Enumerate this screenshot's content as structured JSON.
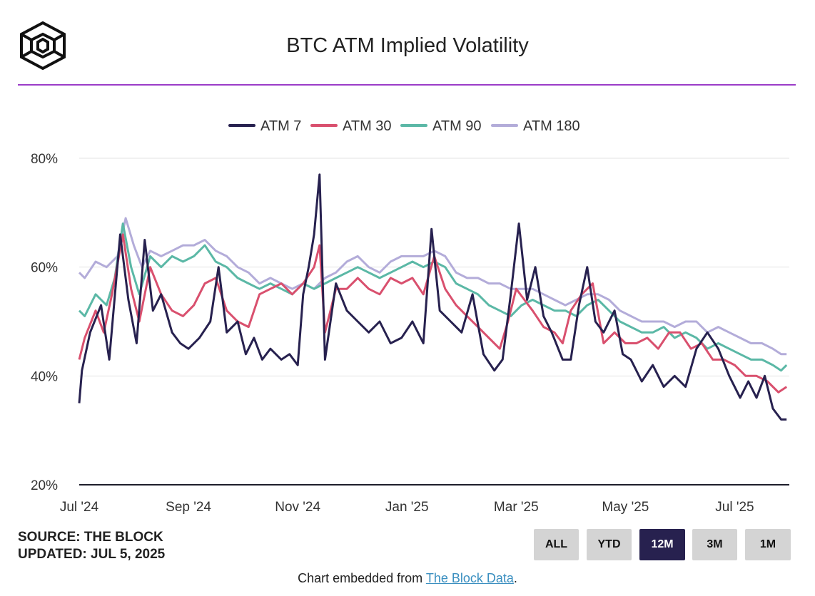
{
  "header": {
    "title": "BTC ATM Implied Volatility"
  },
  "footer": {
    "source": "SOURCE: THE BLOCK",
    "updated": "UPDATED: JUL 5, 2025",
    "embed_prefix": "Chart embedded from ",
    "embed_link": "The Block Data",
    "embed_suffix": "."
  },
  "range_buttons": [
    {
      "label": "ALL",
      "active": false
    },
    {
      "label": "YTD",
      "active": false
    },
    {
      "label": "12M",
      "active": true
    },
    {
      "label": "3M",
      "active": false
    },
    {
      "label": "1M",
      "active": false
    }
  ],
  "colors": {
    "accent_rule": "#9b3dc8",
    "atm7": "#27214f",
    "atm30": "#d9506e",
    "atm90": "#5bb8a6",
    "atm180": "#b3acd9",
    "active_button": "#27214f"
  },
  "chart_data": {
    "type": "line",
    "title": "BTC ATM Implied Volatility",
    "xlabel": "",
    "ylabel": "",
    "ylim": [
      20,
      80
    ],
    "y_ticks": [
      "20%",
      "40%",
      "60%",
      "80%"
    ],
    "y_tick_values": [
      20,
      40,
      60,
      80
    ],
    "x_tick_labels": [
      "Jul '24",
      "Sep '24",
      "Nov '24",
      "Jan '25",
      "Mar '25",
      "May '25",
      "Jul '25"
    ],
    "x_tick_values": [
      0,
      2,
      4,
      6,
      8,
      10,
      12
    ],
    "legend_position": "top-center",
    "grid": true,
    "series": [
      {
        "name": "ATM 7",
        "color": "#27214f",
        "x": [
          0,
          0.05,
          0.2,
          0.4,
          0.55,
          0.75,
          0.9,
          1.05,
          1.2,
          1.35,
          1.5,
          1.7,
          1.85,
          2.0,
          2.2,
          2.4,
          2.55,
          2.7,
          2.9,
          3.05,
          3.2,
          3.35,
          3.5,
          3.7,
          3.85,
          4.0,
          4.1,
          4.2,
          4.3,
          4.4,
          4.5,
          4.7,
          4.9,
          5.1,
          5.3,
          5.5,
          5.7,
          5.9,
          6.1,
          6.3,
          6.45,
          6.6,
          6.8,
          7.0,
          7.2,
          7.4,
          7.6,
          7.75,
          7.9,
          8.05,
          8.2,
          8.35,
          8.5,
          8.65,
          8.85,
          9.0,
          9.15,
          9.3,
          9.45,
          9.6,
          9.8,
          9.95,
          10.1,
          10.3,
          10.5,
          10.7,
          10.9,
          11.1,
          11.3,
          11.5,
          11.7,
          11.9,
          12.1,
          12.25,
          12.4,
          12.55,
          12.7,
          12.85,
          12.95
        ],
        "values": [
          35,
          41,
          48,
          53,
          43,
          66,
          54,
          46,
          65,
          52,
          55,
          48,
          46,
          45,
          47,
          50,
          60,
          48,
          50,
          44,
          47,
          43,
          45,
          43,
          44,
          42,
          55,
          60,
          66,
          77,
          43,
          57,
          52,
          50,
          48,
          50,
          46,
          47,
          50,
          46,
          67,
          52,
          50,
          48,
          55,
          44,
          41,
          43,
          55,
          68,
          54,
          60,
          51,
          48,
          43,
          43,
          53,
          60,
          50,
          48,
          52,
          44,
          43,
          39,
          42,
          38,
          40,
          38,
          45,
          48,
          45,
          40,
          36,
          39,
          36,
          40,
          34,
          32,
          32
        ]
      },
      {
        "name": "ATM 30",
        "color": "#d9506e",
        "x": [
          0,
          0.1,
          0.3,
          0.45,
          0.6,
          0.8,
          0.95,
          1.1,
          1.3,
          1.5,
          1.7,
          1.9,
          2.1,
          2.3,
          2.5,
          2.7,
          2.9,
          3.1,
          3.3,
          3.5,
          3.7,
          3.9,
          4.1,
          4.3,
          4.4,
          4.5,
          4.7,
          4.9,
          5.1,
          5.3,
          5.5,
          5.7,
          5.9,
          6.1,
          6.3,
          6.5,
          6.7,
          6.9,
          7.1,
          7.3,
          7.5,
          7.7,
          7.85,
          8.0,
          8.15,
          8.3,
          8.5,
          8.7,
          8.85,
          9.0,
          9.2,
          9.4,
          9.6,
          9.8,
          10.0,
          10.2,
          10.4,
          10.6,
          10.8,
          11.0,
          11.2,
          11.4,
          11.6,
          11.8,
          12.0,
          12.2,
          12.4,
          12.6,
          12.8,
          12.95
        ],
        "values": [
          43,
          47,
          52,
          48,
          55,
          66,
          56,
          50,
          60,
          55,
          52,
          51,
          53,
          57,
          58,
          52,
          50,
          49,
          55,
          56,
          57,
          55,
          57,
          60,
          64,
          48,
          56,
          56,
          58,
          56,
          55,
          58,
          57,
          58,
          55,
          62,
          56,
          53,
          51,
          49,
          47,
          45,
          50,
          56,
          54,
          52,
          49,
          48,
          46,
          52,
          55,
          57,
          46,
          48,
          46,
          46,
          47,
          45,
          48,
          48,
          45,
          46,
          43,
          43,
          42,
          40,
          40,
          39,
          37,
          38
        ]
      },
      {
        "name": "ATM 90",
        "color": "#5bb8a6",
        "x": [
          0,
          0.1,
          0.3,
          0.5,
          0.65,
          0.8,
          0.95,
          1.1,
          1.3,
          1.5,
          1.7,
          1.9,
          2.1,
          2.3,
          2.5,
          2.7,
          2.9,
          3.1,
          3.3,
          3.5,
          3.7,
          3.9,
          4.1,
          4.3,
          4.5,
          4.7,
          4.9,
          5.1,
          5.3,
          5.5,
          5.7,
          5.9,
          6.1,
          6.3,
          6.5,
          6.7,
          6.9,
          7.1,
          7.3,
          7.5,
          7.7,
          7.9,
          8.1,
          8.3,
          8.5,
          8.7,
          8.9,
          9.1,
          9.3,
          9.5,
          9.7,
          9.9,
          10.1,
          10.3,
          10.5,
          10.7,
          10.9,
          11.1,
          11.3,
          11.5,
          11.7,
          11.9,
          12.1,
          12.3,
          12.5,
          12.7,
          12.85,
          12.95
        ],
        "values": [
          52,
          51,
          55,
          53,
          58,
          68,
          60,
          55,
          62,
          60,
          62,
          61,
          62,
          64,
          61,
          60,
          58,
          57,
          56,
          57,
          56,
          55,
          57,
          56,
          57,
          58,
          59,
          60,
          59,
          58,
          59,
          60,
          61,
          60,
          61,
          60,
          57,
          56,
          55,
          53,
          52,
          51,
          53,
          54,
          53,
          52,
          52,
          51,
          53,
          54,
          52,
          50,
          49,
          48,
          48,
          49,
          47,
          48,
          47,
          45,
          46,
          45,
          44,
          43,
          43,
          42,
          41,
          42
        ]
      },
      {
        "name": "ATM 180",
        "color": "#b3acd9",
        "x": [
          0,
          0.1,
          0.3,
          0.5,
          0.7,
          0.85,
          1.0,
          1.15,
          1.3,
          1.5,
          1.7,
          1.9,
          2.1,
          2.3,
          2.5,
          2.7,
          2.9,
          3.1,
          3.3,
          3.5,
          3.7,
          3.9,
          4.1,
          4.3,
          4.5,
          4.7,
          4.9,
          5.1,
          5.3,
          5.5,
          5.7,
          5.9,
          6.1,
          6.3,
          6.5,
          6.7,
          6.9,
          7.1,
          7.3,
          7.5,
          7.7,
          7.9,
          8.1,
          8.3,
          8.5,
          8.7,
          8.9,
          9.1,
          9.3,
          9.5,
          9.7,
          9.9,
          10.1,
          10.3,
          10.5,
          10.7,
          10.9,
          11.1,
          11.3,
          11.5,
          11.7,
          11.9,
          12.1,
          12.3,
          12.5,
          12.7,
          12.85,
          12.95
        ],
        "values": [
          59,
          58,
          61,
          60,
          62,
          69,
          64,
          60,
          63,
          62,
          63,
          64,
          64,
          65,
          63,
          62,
          60,
          59,
          57,
          58,
          57,
          56,
          57,
          56,
          58,
          59,
          61,
          62,
          60,
          59,
          61,
          62,
          62,
          62,
          63,
          62,
          59,
          58,
          58,
          57,
          57,
          56,
          56,
          56,
          55,
          54,
          53,
          54,
          55,
          55,
          54,
          52,
          51,
          50,
          50,
          50,
          49,
          50,
          50,
          48,
          49,
          48,
          47,
          46,
          46,
          45,
          44,
          44
        ]
      }
    ]
  }
}
